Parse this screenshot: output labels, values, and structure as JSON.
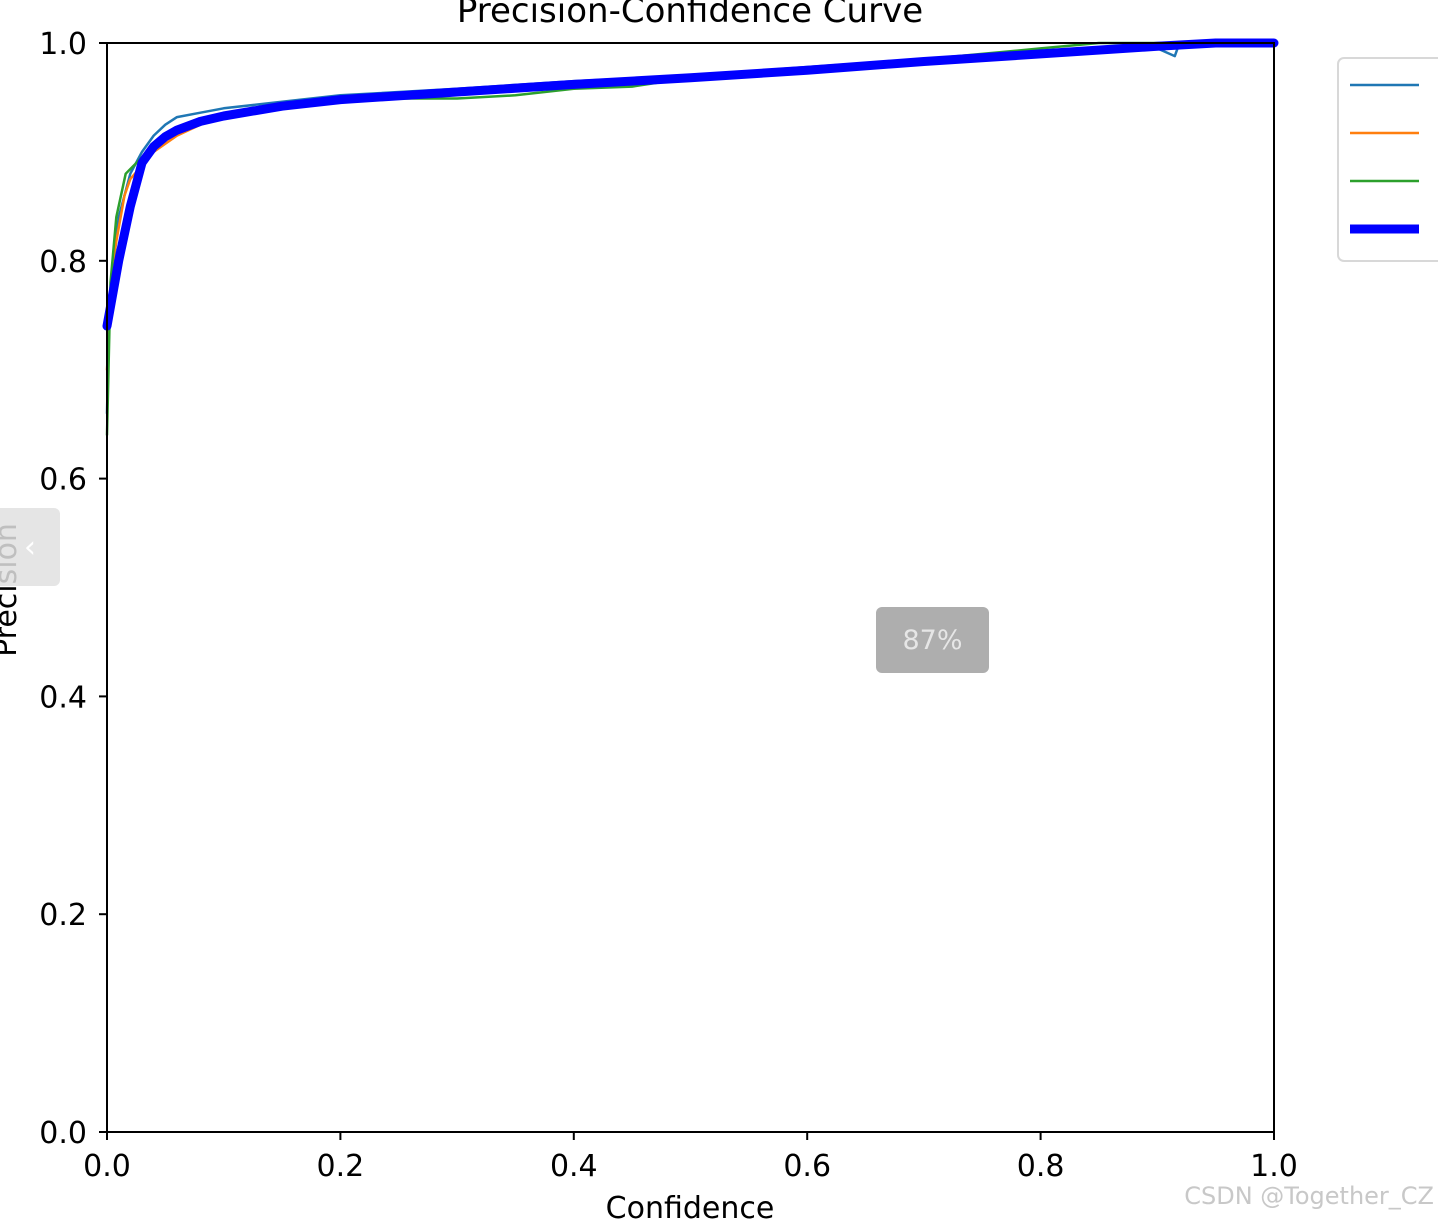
{
  "chart_data": {
    "type": "line",
    "title": "Precision-Confidence Curve",
    "xlabel": "Confidence",
    "ylabel": "Precision",
    "xlim": [
      0,
      1
    ],
    "ylim": [
      0,
      1
    ],
    "xticks": [
      "0.0",
      "0.2",
      "0.4",
      "0.6",
      "0.8",
      "1.0"
    ],
    "yticks": [
      "0.0",
      "0.2",
      "0.4",
      "0.6",
      "0.8",
      "1.0"
    ],
    "grid": false,
    "legend_position": "right, outside plot area",
    "series": [
      {
        "color": "#1f77b4",
        "points": [
          [
            0.0,
            0.66
          ],
          [
            0.002,
            0.76
          ],
          [
            0.01,
            0.84
          ],
          [
            0.02,
            0.88
          ],
          [
            0.03,
            0.9
          ],
          [
            0.04,
            0.915
          ],
          [
            0.05,
            0.925
          ],
          [
            0.06,
            0.932
          ],
          [
            0.08,
            0.936
          ],
          [
            0.1,
            0.94
          ],
          [
            0.15,
            0.946
          ],
          [
            0.2,
            0.952
          ],
          [
            0.3,
            0.958
          ],
          [
            0.4,
            0.965
          ],
          [
            0.5,
            0.97
          ],
          [
            0.6,
            0.978
          ],
          [
            0.7,
            0.985
          ],
          [
            0.8,
            0.99
          ],
          [
            0.88,
            0.997
          ],
          [
            0.9,
            0.995
          ],
          [
            0.915,
            0.988
          ],
          [
            0.918,
            0.997
          ],
          [
            0.95,
            1.0
          ],
          [
            1.0,
            1.0
          ]
        ]
      },
      {
        "color": "#ff7f0e",
        "points": [
          [
            0.0,
            0.7
          ],
          [
            0.005,
            0.8
          ],
          [
            0.015,
            0.86
          ],
          [
            0.02,
            0.875
          ],
          [
            0.04,
            0.9
          ],
          [
            0.06,
            0.915
          ],
          [
            0.08,
            0.925
          ],
          [
            0.1,
            0.932
          ],
          [
            0.15,
            0.942
          ],
          [
            0.2,
            0.95
          ],
          [
            0.3,
            0.955
          ],
          [
            0.4,
            0.963
          ],
          [
            0.5,
            0.97
          ],
          [
            0.6,
            0.977
          ],
          [
            0.7,
            0.982
          ],
          [
            0.75,
            0.985
          ],
          [
            0.82,
            0.99
          ],
          [
            0.9,
            0.998
          ],
          [
            1.0,
            1.0
          ]
        ]
      },
      {
        "color": "#2ca02c",
        "points": [
          [
            0.0,
            0.64
          ],
          [
            0.003,
            0.78
          ],
          [
            0.008,
            0.84
          ],
          [
            0.016,
            0.88
          ],
          [
            0.03,
            0.895
          ],
          [
            0.05,
            0.915
          ],
          [
            0.08,
            0.928
          ],
          [
            0.1,
            0.933
          ],
          [
            0.15,
            0.94
          ],
          [
            0.2,
            0.946
          ],
          [
            0.25,
            0.949
          ],
          [
            0.3,
            0.949
          ],
          [
            0.35,
            0.952
          ],
          [
            0.4,
            0.958
          ],
          [
            0.45,
            0.96
          ],
          [
            0.5,
            0.968
          ],
          [
            0.6,
            0.976
          ],
          [
            0.7,
            0.985
          ],
          [
            0.8,
            0.995
          ],
          [
            0.85,
            1.0
          ],
          [
            1.0,
            1.0
          ]
        ]
      },
      {
        "color": "#0000ff",
        "bold": true,
        "points": [
          [
            0.0,
            0.74
          ],
          [
            0.01,
            0.8
          ],
          [
            0.02,
            0.85
          ],
          [
            0.03,
            0.89
          ],
          [
            0.04,
            0.905
          ],
          [
            0.05,
            0.914
          ],
          [
            0.06,
            0.92
          ],
          [
            0.08,
            0.928
          ],
          [
            0.1,
            0.933
          ],
          [
            0.15,
            0.942
          ],
          [
            0.2,
            0.948
          ],
          [
            0.3,
            0.955
          ],
          [
            0.4,
            0.962
          ],
          [
            0.5,
            0.968
          ],
          [
            0.6,
            0.975
          ],
          [
            0.7,
            0.983
          ],
          [
            0.8,
            0.99
          ],
          [
            0.9,
            0.997
          ],
          [
            0.95,
            1.0
          ],
          [
            1.0,
            1.0
          ]
        ]
      }
    ]
  },
  "overlay": {
    "zoom_level": "87%",
    "side_tab_icon": "collapse-arrow-icon",
    "watermark": "CSDN @Together_CZ"
  }
}
